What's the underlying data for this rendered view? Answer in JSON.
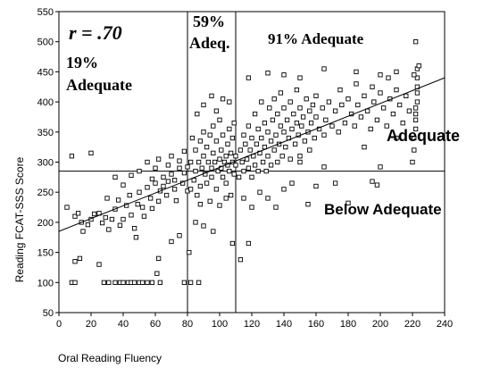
{
  "chart_data": {
    "type": "scatter",
    "xlabel": "Oral Reading Fluency",
    "ylabel": "Reading FCAT-SSS Score",
    "xlim": [
      0,
      240
    ],
    "ylim": [
      50,
      550
    ],
    "x_ticks": [
      0,
      20,
      40,
      60,
      80,
      100,
      120,
      140,
      160,
      180,
      200,
      220,
      240
    ],
    "y_ticks": [
      50,
      100,
      150,
      200,
      250,
      300,
      350,
      400,
      450,
      500,
      550
    ],
    "grid": false,
    "marker": "open-square",
    "cutoffs": {
      "x": [
        80,
        110
      ],
      "y": 285
    },
    "regression_line": {
      "x": [
        0,
        240
      ],
      "y": [
        185,
        440
      ]
    },
    "annotations": {
      "r": "r = .70",
      "pct_left_line1": "19%",
      "pct_left_line2": "Adequate",
      "pct_mid_line1": "59%",
      "pct_mid_line2": "Adeq.",
      "pct_right": "91% Adequate",
      "adequate": "Adequate",
      "below_adequate": "Below Adequate"
    },
    "points": [
      [
        8,
        100
      ],
      [
        10,
        100
      ],
      [
        28,
        100
      ],
      [
        31,
        100
      ],
      [
        35,
        100
      ],
      [
        38,
        100
      ],
      [
        40,
        100
      ],
      [
        43,
        100
      ],
      [
        45,
        100
      ],
      [
        47,
        100
      ],
      [
        50,
        100
      ],
      [
        52,
        100
      ],
      [
        55,
        100
      ],
      [
        58,
        100
      ],
      [
        63,
        100
      ],
      [
        78,
        100
      ],
      [
        82,
        100
      ],
      [
        87,
        100
      ],
      [
        61,
        115
      ],
      [
        10,
        135
      ],
      [
        13,
        140
      ],
      [
        25,
        130
      ],
      [
        48,
        175
      ],
      [
        62,
        140
      ],
      [
        70,
        168
      ],
      [
        75,
        178
      ],
      [
        81,
        150
      ],
      [
        85,
        200
      ],
      [
        90,
        194
      ],
      [
        96,
        185
      ],
      [
        108,
        165
      ],
      [
        113,
        138
      ],
      [
        118,
        165
      ],
      [
        5,
        225
      ],
      [
        10,
        210
      ],
      [
        12,
        215
      ],
      [
        14,
        200
      ],
      [
        15,
        185
      ],
      [
        18,
        196
      ],
      [
        20,
        205
      ],
      [
        22,
        214
      ],
      [
        25,
        215
      ],
      [
        27,
        199
      ],
      [
        29,
        208
      ],
      [
        31,
        188
      ],
      [
        33,
        205
      ],
      [
        35,
        222
      ],
      [
        37,
        237
      ],
      [
        38,
        195
      ],
      [
        40,
        205
      ],
      [
        42,
        228
      ],
      [
        44,
        245
      ],
      [
        45,
        212
      ],
      [
        47,
        190
      ],
      [
        49,
        230
      ],
      [
        50,
        250
      ],
      [
        52,
        225
      ],
      [
        53,
        210
      ],
      [
        55,
        258
      ],
      [
        57,
        240
      ],
      [
        58,
        223
      ],
      [
        60,
        265
      ],
      [
        62,
        235
      ],
      [
        63,
        252
      ],
      [
        65,
        275
      ],
      [
        67,
        245
      ],
      [
        68,
        268
      ],
      [
        70,
        280
      ],
      [
        72,
        255
      ],
      [
        73,
        236
      ],
      [
        75,
        290
      ],
      [
        77,
        265
      ],
      [
        78,
        282
      ],
      [
        80,
        252
      ],
      [
        8,
        310
      ],
      [
        20,
        315
      ],
      [
        30,
        240
      ],
      [
        35,
        275
      ],
      [
        40,
        262
      ],
      [
        45,
        278
      ],
      [
        50,
        285
      ],
      [
        55,
        300
      ],
      [
        58,
        272
      ],
      [
        60,
        290
      ],
      [
        62,
        305
      ],
      [
        65,
        260
      ],
      [
        68,
        295
      ],
      [
        70,
        310
      ],
      [
        72,
        270
      ],
      [
        75,
        302
      ],
      [
        78,
        318
      ],
      [
        80,
        292
      ],
      [
        82,
        255
      ],
      [
        82,
        300
      ],
      [
        83,
        340
      ],
      [
        84,
        270
      ],
      [
        85,
        285
      ],
      [
        85,
        320
      ],
      [
        86,
        245
      ],
      [
        87,
        300
      ],
      [
        88,
        260
      ],
      [
        88,
        335
      ],
      [
        89,
        290
      ],
      [
        90,
        310
      ],
      [
        90,
        350
      ],
      [
        91,
        280
      ],
      [
        92,
        265
      ],
      [
        92,
        325
      ],
      [
        93,
        300
      ],
      [
        94,
        345
      ],
      [
        95,
        290
      ],
      [
        95,
        275
      ],
      [
        96,
        315
      ],
      [
        96,
        360
      ],
      [
        97,
        300
      ],
      [
        98,
        255
      ],
      [
        98,
        335
      ],
      [
        99,
        285
      ],
      [
        100,
        305
      ],
      [
        100,
        370
      ],
      [
        101,
        290
      ],
      [
        101,
        320
      ],
      [
        102,
        275
      ],
      [
        102,
        345
      ],
      [
        103,
        300
      ],
      [
        104,
        310
      ],
      [
        104,
        265
      ],
      [
        105,
        330
      ],
      [
        105,
        295
      ],
      [
        106,
        355
      ],
      [
        106,
        285
      ],
      [
        107,
        315
      ],
      [
        107,
        245
      ],
      [
        108,
        300
      ],
      [
        108,
        340
      ],
      [
        109,
        280
      ],
      [
        109,
        365
      ],
      [
        110,
        310
      ],
      [
        110,
        295
      ],
      [
        86,
        380
      ],
      [
        90,
        395
      ],
      [
        95,
        410
      ],
      [
        98,
        385
      ],
      [
        102,
        405
      ],
      [
        106,
        400
      ],
      [
        104,
        240
      ],
      [
        94,
        235
      ],
      [
        88,
        230
      ],
      [
        100,
        228
      ],
      [
        112,
        275
      ],
      [
        113,
        320
      ],
      [
        114,
        300
      ],
      [
        115,
        345
      ],
      [
        115,
        285
      ],
      [
        116,
        330
      ],
      [
        117,
        305
      ],
      [
        118,
        360
      ],
      [
        118,
        290
      ],
      [
        119,
        320
      ],
      [
        120,
        340
      ],
      [
        120,
        275
      ],
      [
        121,
        310
      ],
      [
        122,
        380
      ],
      [
        122,
        295
      ],
      [
        123,
        330
      ],
      [
        124,
        355
      ],
      [
        124,
        285
      ],
      [
        125,
        315
      ],
      [
        126,
        340
      ],
      [
        126,
        400
      ],
      [
        127,
        300
      ],
      [
        128,
        365
      ],
      [
        128,
        325
      ],
      [
        129,
        285
      ],
      [
        130,
        350
      ],
      [
        130,
        310
      ],
      [
        131,
        390
      ],
      [
        132,
        335
      ],
      [
        132,
        295
      ],
      [
        133,
        370
      ],
      [
        134,
        320
      ],
      [
        134,
        405
      ],
      [
        135,
        345
      ],
      [
        136,
        300
      ],
      [
        136,
        380
      ],
      [
        137,
        330
      ],
      [
        138,
        360
      ],
      [
        138,
        415
      ],
      [
        139,
        310
      ],
      [
        140,
        350
      ],
      [
        140,
        390
      ],
      [
        141,
        325
      ],
      [
        142,
        370
      ],
      [
        143,
        340
      ],
      [
        144,
        400
      ],
      [
        144,
        305
      ],
      [
        145,
        355
      ],
      [
        146,
        380
      ],
      [
        147,
        330
      ],
      [
        148,
        365
      ],
      [
        148,
        420
      ],
      [
        149,
        345
      ],
      [
        150,
        390
      ],
      [
        150,
        310
      ],
      [
        151,
        360
      ],
      [
        152,
        375
      ],
      [
        153,
        335
      ],
      [
        154,
        405
      ],
      [
        155,
        350
      ],
      [
        156,
        385
      ],
      [
        156,
        320
      ],
      [
        157,
        365
      ],
      [
        158,
        395
      ],
      [
        159,
        340
      ],
      [
        160,
        375
      ],
      [
        160,
        410
      ],
      [
        162,
        355
      ],
      [
        164,
        390
      ],
      [
        165,
        345
      ],
      [
        166,
        370
      ],
      [
        168,
        400
      ],
      [
        170,
        360
      ],
      [
        172,
        385
      ],
      [
        174,
        350
      ],
      [
        175,
        420
      ],
      [
        176,
        395
      ],
      [
        178,
        365
      ],
      [
        180,
        405
      ],
      [
        182,
        380
      ],
      [
        184,
        360
      ],
      [
        185,
        430
      ],
      [
        186,
        395
      ],
      [
        188,
        375
      ],
      [
        190,
        410
      ],
      [
        192,
        385
      ],
      [
        194,
        355
      ],
      [
        195,
        425
      ],
      [
        196,
        400
      ],
      [
        198,
        370
      ],
      [
        200,
        415
      ],
      [
        202,
        390
      ],
      [
        204,
        360
      ],
      [
        205,
        440
      ],
      [
        206,
        405
      ],
      [
        208,
        380
      ],
      [
        210,
        420
      ],
      [
        212,
        395
      ],
      [
        214,
        365
      ],
      [
        216,
        410
      ],
      [
        218,
        385
      ],
      [
        115,
        240
      ],
      [
        120,
        225
      ],
      [
        125,
        250
      ],
      [
        130,
        240
      ],
      [
        135,
        225
      ],
      [
        140,
        255
      ],
      [
        145,
        265
      ],
      [
        150,
        300
      ],
      [
        155,
        230
      ],
      [
        160,
        260
      ],
      [
        165,
        292
      ],
      [
        172,
        265
      ],
      [
        180,
        232
      ],
      [
        190,
        325
      ],
      [
        195,
        268
      ],
      [
        198,
        262
      ],
      [
        200,
        292
      ],
      [
        210,
        340
      ],
      [
        118,
        440
      ],
      [
        130,
        448
      ],
      [
        140,
        445
      ],
      [
        150,
        440
      ],
      [
        165,
        455
      ],
      [
        185,
        450
      ],
      [
        200,
        445
      ],
      [
        210,
        450
      ],
      [
        220,
        300
      ],
      [
        221,
        320
      ],
      [
        221,
        340
      ],
      [
        222,
        355
      ],
      [
        222,
        370
      ],
      [
        222,
        380
      ],
      [
        222,
        390
      ],
      [
        223,
        400
      ],
      [
        223,
        415
      ],
      [
        223,
        425
      ],
      [
        223,
        440
      ],
      [
        223,
        455
      ],
      [
        222,
        500
      ],
      [
        224,
        460
      ],
      [
        221,
        445
      ]
    ]
  }
}
